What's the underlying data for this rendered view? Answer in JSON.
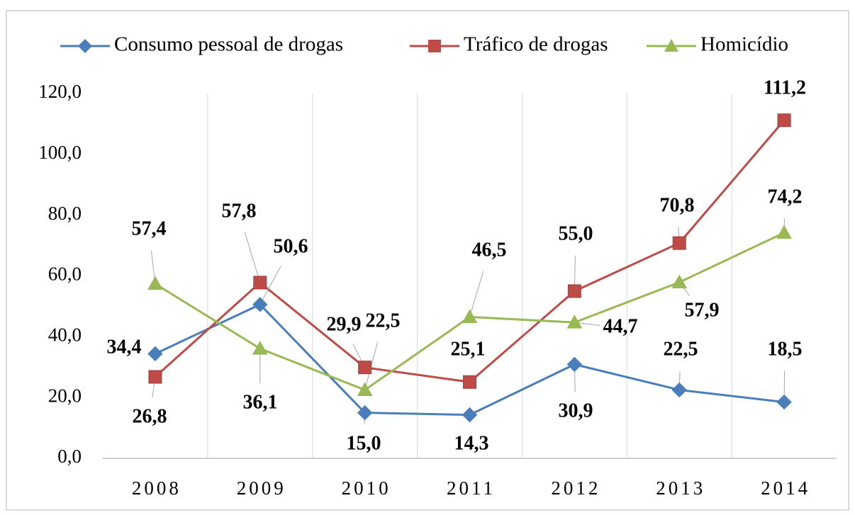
{
  "chart_data": {
    "type": "line",
    "categories": [
      "2008",
      "2009",
      "2010",
      "2011",
      "2012",
      "2013",
      "2014"
    ],
    "series": [
      {
        "name": "Consumo pessoal de drogas",
        "color": "#4a7ebb",
        "marker": "diamond",
        "values": [
          34.4,
          50.6,
          15.0,
          14.3,
          30.9,
          22.5,
          18.5
        ],
        "value_labels": [
          "34,4",
          "50,6",
          "15,0",
          "14,3",
          "30,9",
          "22,5",
          "18,5"
        ]
      },
      {
        "name": "Tráfico de drogas",
        "color": "#be4b48",
        "marker": "square",
        "values": [
          26.8,
          57.8,
          29.9,
          25.1,
          55.0,
          70.8,
          111.2
        ],
        "value_labels": [
          "26,8",
          "57,8",
          "29,9",
          "25,1",
          "55,0",
          "70,8",
          "111,2"
        ]
      },
      {
        "name": "Homicídio",
        "color": "#98b954",
        "marker": "triangle",
        "values": [
          57.4,
          36.1,
          22.5,
          46.5,
          44.7,
          57.9,
          74.2
        ],
        "value_labels": [
          "57,4",
          "36,1",
          "22,5",
          "46,5",
          "44,7",
          "57,9",
          "74,2"
        ]
      }
    ],
    "ylim": [
      0,
      120
    ],
    "yticks": [
      {
        "value": 0,
        "label": "0,0"
      },
      {
        "value": 20,
        "label": "20,0"
      },
      {
        "value": 40,
        "label": "40,0"
      },
      {
        "value": 60,
        "label": "60,0"
      },
      {
        "value": 80,
        "label": "80,0"
      },
      {
        "value": 100,
        "label": "100,0"
      },
      {
        "value": 120,
        "label": "120,0"
      }
    ],
    "legend": "top"
  }
}
